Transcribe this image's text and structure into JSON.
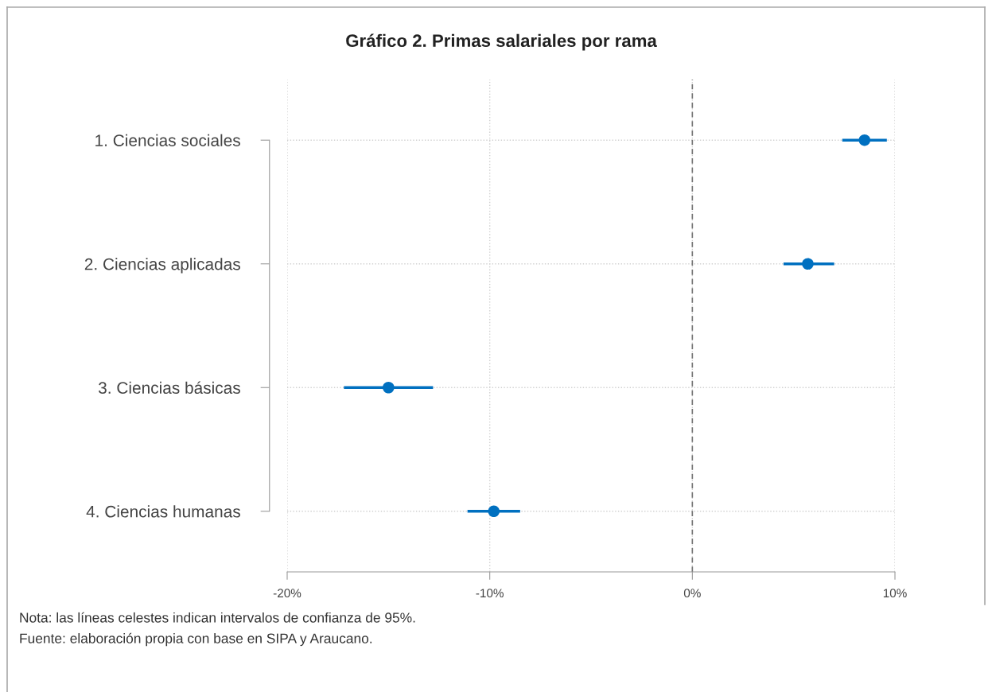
{
  "chart_data": {
    "type": "scatter",
    "orientation": "horizontal",
    "title": "Gráfico 2. Primas salariales por rama",
    "categories": [
      "1. Ciencias sociales",
      "2. Ciencias aplicadas",
      "3. Ciencias básicas",
      "4. Ciencias humanas"
    ],
    "series": [
      {
        "color": "#0070c0",
        "values": [
          8.5,
          5.7,
          -15.0,
          -9.8
        ],
        "errors": [
          [
            7.4,
            9.6
          ],
          [
            4.5,
            7.0
          ],
          [
            -17.2,
            -12.8
          ],
          [
            -11.1,
            -8.5
          ]
        ]
      }
    ],
    "xlim": [
      -20,
      10
    ],
    "xticks": [
      {
        "value": -20,
        "label": "-20%"
      },
      {
        "value": -10,
        "label": "-10%"
      },
      {
        "value": 0,
        "label": "0%"
      },
      {
        "value": 10,
        "label": "10%"
      }
    ],
    "ref_lines": [
      {
        "axis": "x",
        "value": 0,
        "color": "#777777",
        "line_style": "dashed"
      }
    ],
    "grid": true,
    "marker": "circle",
    "annotations": [
      "Nota: las líneas celestes indican intervalos de confianza de 95%.",
      "Fuente: elaboración propia con base en SIPA y Araucano."
    ]
  }
}
